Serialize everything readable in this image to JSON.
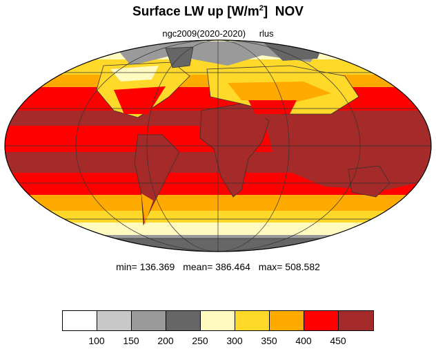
{
  "title": {
    "main": "Surface LW up [W/m",
    "sup": "2",
    "close": "]",
    "month": "NOV"
  },
  "subtitle": {
    "dataset": "ngc2009(2020-2020)",
    "variable": "rlus"
  },
  "stats": {
    "min": "min= 136.369",
    "mean": "mean= 386.464",
    "max": "max= 508.582"
  },
  "colorbar": {
    "colors": [
      "#ffffff",
      "#c8c8c8",
      "#9a9a9a",
      "#666666",
      "#fffac0",
      "#ffd92a",
      "#ffaa00",
      "#ff0000",
      "#a52a2a"
    ],
    "labels": [
      "100",
      "150",
      "200",
      "250",
      "300",
      "350",
      "400",
      "450"
    ]
  }
}
